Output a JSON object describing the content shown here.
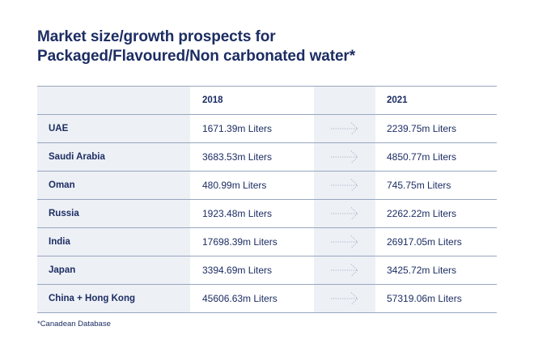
{
  "title": {
    "line1": "Market size/growth prospects for",
    "line2": "Packaged/Flavoured/Non carbonated water*"
  },
  "table": {
    "columns": [
      "",
      "2018",
      "",
      "2021"
    ],
    "rows": [
      {
        "country": "UAE",
        "v2018": "1671.39m Liters",
        "v2021": "2239.75m Liters"
      },
      {
        "country": "Saudi Arabia",
        "v2018": "3683.53m Liters",
        "v2021": "4850.77m Liters"
      },
      {
        "country": "Oman",
        "v2018": "480.99m Liters",
        "v2021": "745.75m Liters"
      },
      {
        "country": "Russia",
        "v2018": "1923.48m Liters",
        "v2021": "2262.22m Liters"
      },
      {
        "country": "India",
        "v2018": "17698.39m Liters",
        "v2021": "26917.05m Liters"
      },
      {
        "country": "Japan",
        "v2018": "3394.69m Liters",
        "v2021": "3425.72m Liters"
      },
      {
        "country": "China + Hong Kong",
        "v2018": "45606.63m Liters",
        "v2021": "57319.06m Liters"
      }
    ],
    "arrow_icon": "dotted-arrow-right-icon"
  },
  "footnote": "*Canadean Database",
  "colors": {
    "text": "#1c2d63",
    "shade": "#edf0f5",
    "rule": "#98a6c0",
    "arrow": "#a9b3c6"
  }
}
